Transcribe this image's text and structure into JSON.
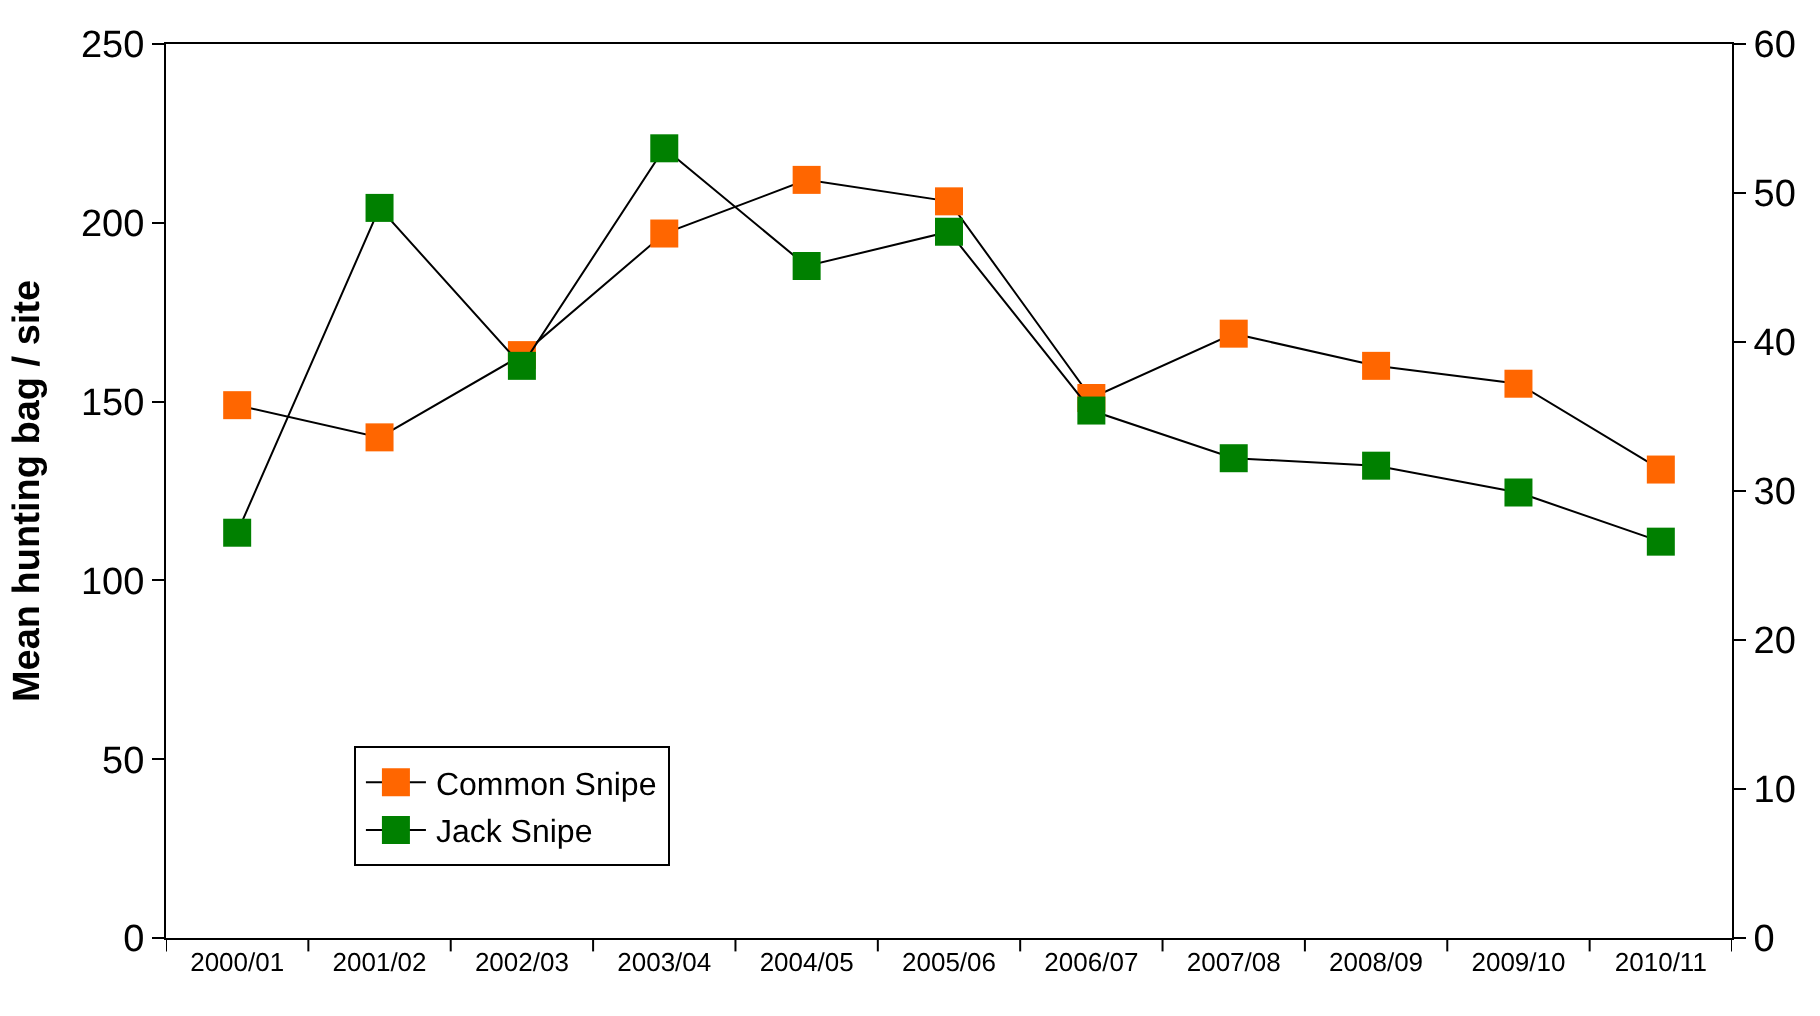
{
  "chart_data": {
    "type": "line",
    "ylabel": "Mean hunting bag / site",
    "categories": [
      "2000/01",
      "2001/02",
      "2002/03",
      "2003/04",
      "2004/05",
      "2005/06",
      "2006/07",
      "2007/08",
      "2008/09",
      "2009/10",
      "2010/11"
    ],
    "series": [
      {
        "name": "Common Snipe",
        "color": "#ff6600",
        "values": [
          149,
          140,
          163,
          197,
          212,
          206,
          151,
          169,
          160,
          155,
          131
        ]
      },
      {
        "name": "Jack Snipe",
        "color": "#008000",
        "axis": "y2",
        "values": [
          27.2,
          49,
          38.4,
          53,
          45.1,
          47.4,
          35.4,
          32.2,
          31.7,
          29.9,
          26.6
        ]
      }
    ],
    "ylim": [
      0,
      250
    ],
    "yticks": [
      0,
      50,
      100,
      150,
      200,
      250
    ],
    "y2lim": [
      0,
      60
    ],
    "y2ticks": [
      0,
      10,
      20,
      30,
      40,
      50,
      60
    ],
    "marker": "square",
    "line_style": "solid",
    "legend": "bottom left"
  }
}
